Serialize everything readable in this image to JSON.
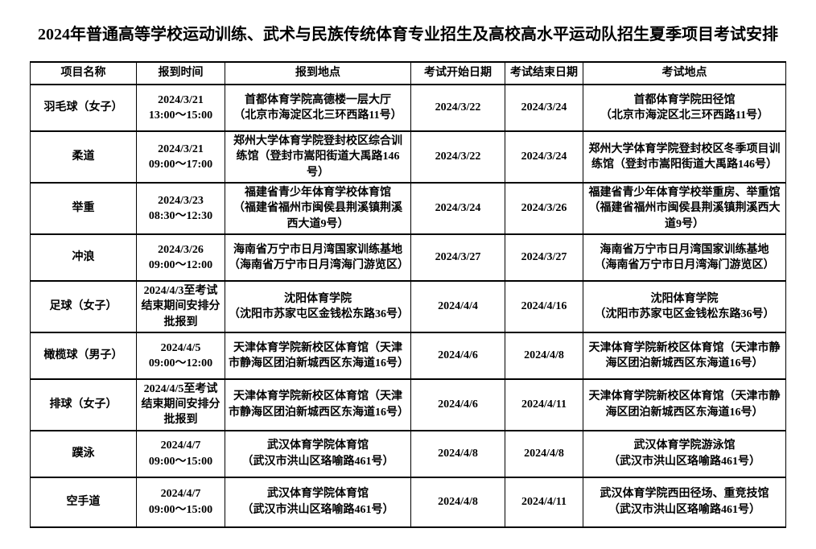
{
  "page": {
    "title": "2024年普通高等学校运动训练、武术与民族传统体育专业招生及高校高水平运动队招生夏季项目考试安排"
  },
  "table": {
    "headers": [
      "项目名称",
      "报到时间",
      "报到地点",
      "考试开始日期",
      "考试结束日期",
      "考试地点"
    ],
    "row_keys": [
      "name",
      "checkin_time",
      "checkin_place",
      "start_date",
      "end_date",
      "exam_place"
    ],
    "rows": [
      {
        "name": "羽毛球（女子）",
        "checkin_time": "2024/3/21\n13:00～15:00",
        "checkin_place": "首都体育学院高德楼一层大厅\n（北京市海淀区北三环西路11号）",
        "start_date": "2024/3/22",
        "end_date": "2024/3/24",
        "exam_place": "首都体育学院田径馆\n（北京市海淀区北三环西路11号）"
      },
      {
        "name": "柔道",
        "checkin_time": "2024/3/21\n09:00～17:00",
        "checkin_place": "郑州大学体育学院登封校区综合训练馆（登封市嵩阳街道大禹路146号）",
        "start_date": "2024/3/22",
        "end_date": "2024/3/24",
        "exam_place": "郑州大学体育学院登封校区冬季项目训练馆（登封市嵩阳街道大禹路146号）"
      },
      {
        "name": "举重",
        "checkin_time": "2024/3/23\n08:30～12:30",
        "checkin_place": "福建省青少年体育学校体育馆\n（福建省福州市闽侯县荆溪镇荆溪西大道9号）",
        "start_date": "2024/3/24",
        "end_date": "2024/3/26",
        "exam_place": "福建省青少年体育学校举重房、举重馆（福建省福州市闽侯县荆溪镇荆溪西大道9号）"
      },
      {
        "name": "冲浪",
        "checkin_time": "2024/3/26\n09:00～12:00",
        "checkin_place": "海南省万宁市日月湾国家训练基地\n（海南省万宁市日月湾海门游览区）",
        "start_date": "2024/3/27",
        "end_date": "2024/3/27",
        "exam_place": "海南省万宁市日月湾国家训练基地\n（海南省万宁市日月湾海门游览区）"
      },
      {
        "name": "足球（女子）",
        "checkin_time": "2024/4/3至考试结束期间安排分批报到",
        "checkin_place": "沈阳体育学院\n（沈阳市苏家屯区金钱松东路36号）",
        "start_date": "2024/4/4",
        "end_date": "2024/4/16",
        "exam_place": "沈阳体育学院\n（沈阳市苏家屯区金钱松东路36号）"
      },
      {
        "name": "橄榄球（男子）",
        "checkin_time": "2024/4/5\n09:00～12:00",
        "checkin_place": "天津体育学院新校区体育馆（天津市静海区团泊新城西区东海道16号）",
        "start_date": "2024/4/6",
        "end_date": "2024/4/8",
        "exam_place": "天津体育学院新校区体育馆（天津市静海区团泊新城西区东海道16号）"
      },
      {
        "name": "排球（女子）",
        "checkin_time": "2024/4/5至考试结束期间安排分批报到",
        "checkin_place": "天津体育学院新校区体育馆（天津市静海区团泊新城西区东海道16号）",
        "start_date": "2024/4/6",
        "end_date": "2024/4/11",
        "exam_place": "天津体育学院新校区体育馆（天津市静海区团泊新城西区东海道16号）"
      },
      {
        "name": "蹼泳",
        "checkin_time": "2024/4/7\n09:00～15:00",
        "checkin_place": "武汉体育学院体育馆\n（武汉市洪山区珞喻路461号）",
        "start_date": "2024/4/8",
        "end_date": "2024/4/8",
        "exam_place": "武汉体育学院游泳馆\n（武汉市洪山区珞喻路461号）"
      },
      {
        "name": "空手道",
        "checkin_time": "2024/4/7\n09:00～15:00",
        "checkin_place": "武汉体育学院体育馆\n（武汉市洪山区珞喻路461号）",
        "start_date": "2024/4/8",
        "end_date": "2024/4/11",
        "exam_place": "武汉体育学院西田径场、重竞技馆\n（武汉市洪山区珞喻路461号）"
      }
    ]
  }
}
